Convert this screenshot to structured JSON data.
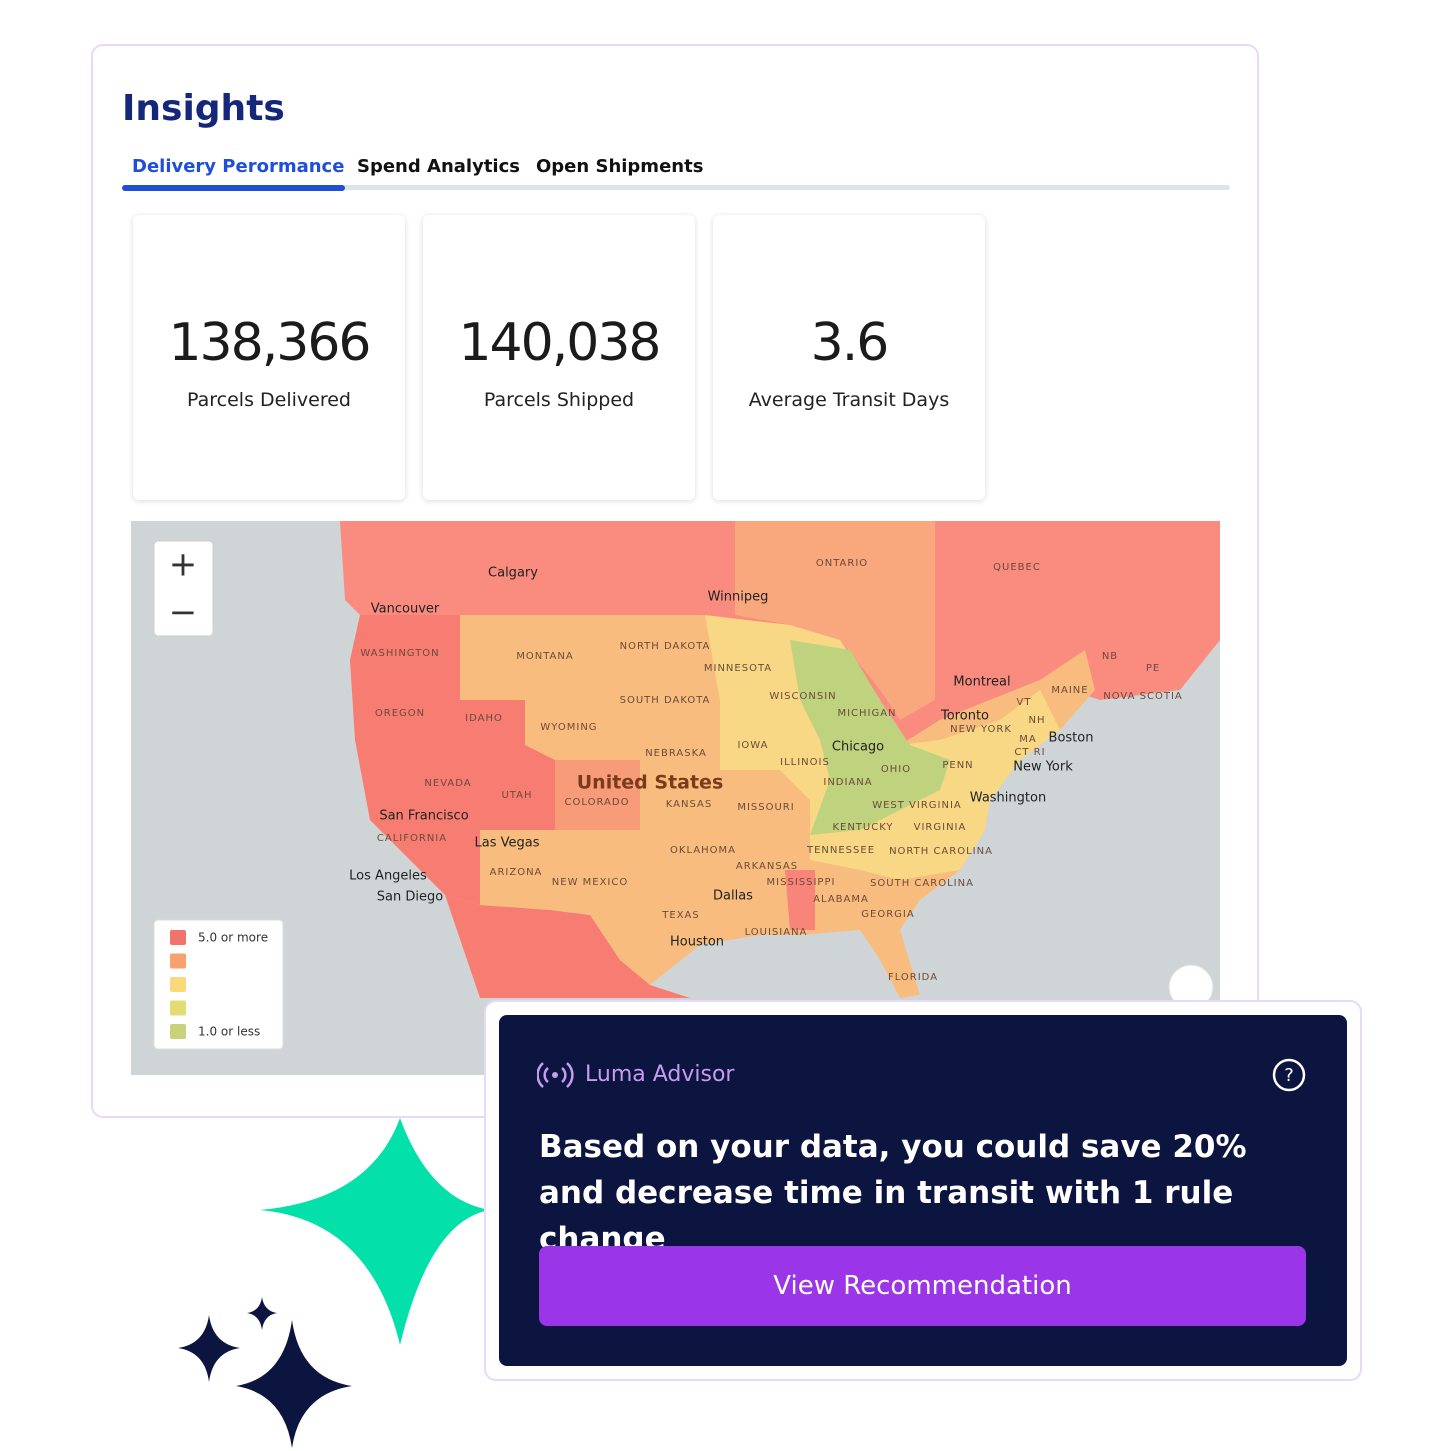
{
  "header": {
    "title": "Insights"
  },
  "tabs": [
    "Delivery Perormance",
    "Spend Analytics",
    "Open Shipments"
  ],
  "kpis": [
    {
      "value": "138,366",
      "label": "Parcels Delivered"
    },
    {
      "value": "140,038",
      "label": "Parcels Shipped"
    },
    {
      "value": "3.6",
      "label": "Average Transit Days"
    }
  ],
  "map": {
    "labels": [
      "Calgary",
      "Winnipeg",
      "Vancouver",
      "ONTARIO",
      "QUEBEC",
      "WASHINGTON",
      "MONTANA",
      "NORTH DAKOTA",
      "MINNESOTA",
      "NB",
      "PE",
      "NOVA SCOTIA",
      "MAINE",
      "Montreal",
      "WISCONSIN",
      "OREGON",
      "IDAHO",
      "SOUTH DAKOTA",
      "WYOMING",
      "MICHIGAN",
      "Toronto",
      "VT",
      "NH",
      "NEW YORK",
      "IOWA",
      "NEBRASKA",
      "Chicago",
      "MA",
      "Boston",
      "CT RI",
      "ILLINOIS",
      "NEVADA",
      "United States",
      "OHIO",
      "PENN",
      "New York",
      "UTAH",
      "COLORADO",
      "KANSAS",
      "MISSOURI",
      "INDIANA",
      "WEST VIRGINIA",
      "Washington",
      "San Francisco",
      "CALIFORNIA",
      "KENTUCKY",
      "VIRGINIA",
      "Las Vegas",
      "OKLAHOMA",
      "TENNESSEE",
      "NORTH CAROLINA",
      "ARKANSAS",
      "ARIZONA",
      "Los Angeles",
      "NEW MEXICO",
      "MISSISSIPPI",
      "SOUTH CAROLINA",
      "Dallas",
      "San Diego",
      "ALABAMA",
      "TEXAS",
      "GEORGIA",
      "LOUISIANA",
      "Houston",
      "FLORIDA"
    ],
    "legend": {
      "colors": [
        "#f2736b",
        "#f7a26e",
        "#fbd97a",
        "#e3dc74",
        "#c8d27a"
      ],
      "high": "5.0 or more",
      "low": "1.0 or less"
    }
  },
  "advisor": {
    "name": "Luma Advisor",
    "message": "Based on your data, you could save 20% and decrease time in transit with 1 rule change",
    "button": "View Recommendation"
  }
}
